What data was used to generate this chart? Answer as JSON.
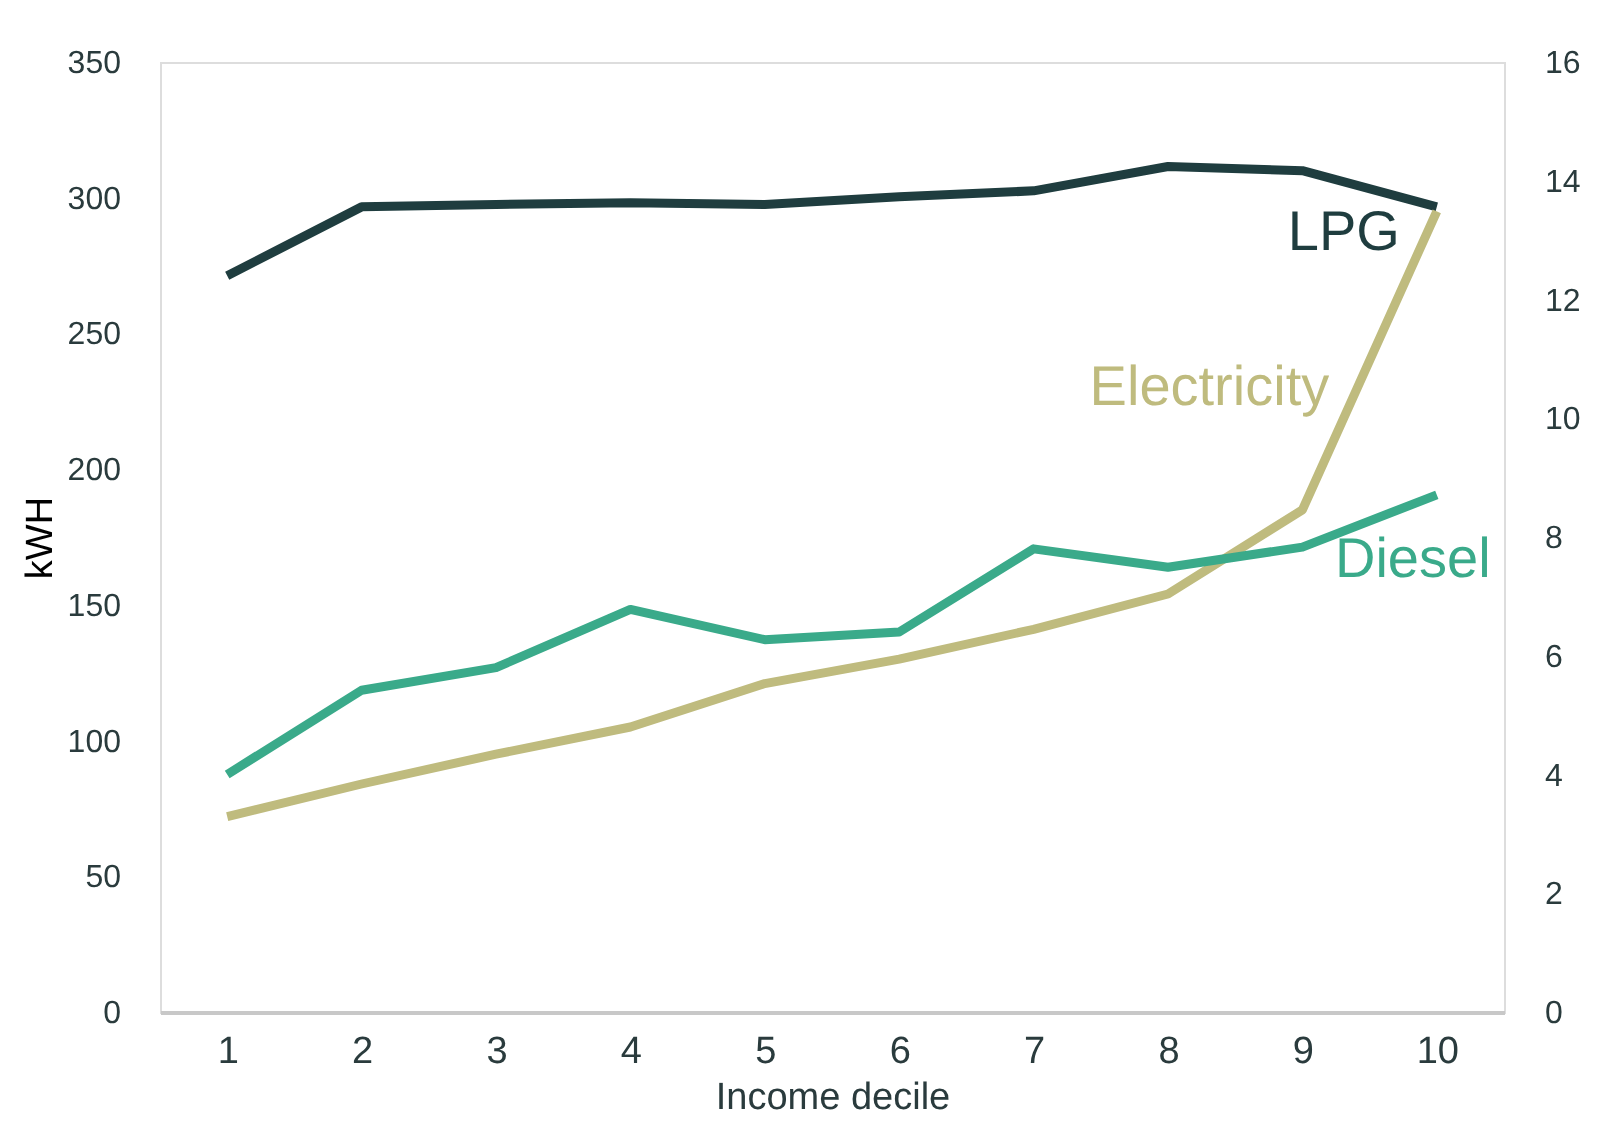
{
  "chart_data": {
    "type": "line",
    "xlabel": "Income decile",
    "ylabel": "kWH",
    "categories": [
      "1",
      "2",
      "3",
      "4",
      "5",
      "6",
      "7",
      "8",
      "9",
      "10"
    ],
    "ylim": [
      0,
      350
    ],
    "yticks": [
      0,
      50,
      100,
      150,
      200,
      250,
      300,
      350
    ],
    "y2lim": [
      0,
      16
    ],
    "y2ticks": [
      0,
      2,
      4,
      6,
      8,
      10,
      12,
      14,
      16
    ],
    "grid": false,
    "line_style": "solid",
    "marker": "none",
    "series": [
      {
        "name": "LPG",
        "color": "#1f3d3f",
        "axis": "y2",
        "values": [
          12.4,
          13.56,
          13.6,
          13.63,
          13.6,
          13.73,
          13.83,
          14.24,
          14.17,
          13.56
        ]
      },
      {
        "name": "Electricity",
        "color": "#bfbb7e",
        "values": [
          72,
          84,
          95,
          105,
          121,
          130,
          141,
          154,
          185,
          295
        ]
      },
      {
        "name": "Diesel",
        "color": "#3aaa8a",
        "axis": "y2",
        "values": [
          4.0,
          5.42,
          5.8,
          6.78,
          6.27,
          6.4,
          7.8,
          7.49,
          7.83,
          8.71
        ]
      }
    ]
  }
}
